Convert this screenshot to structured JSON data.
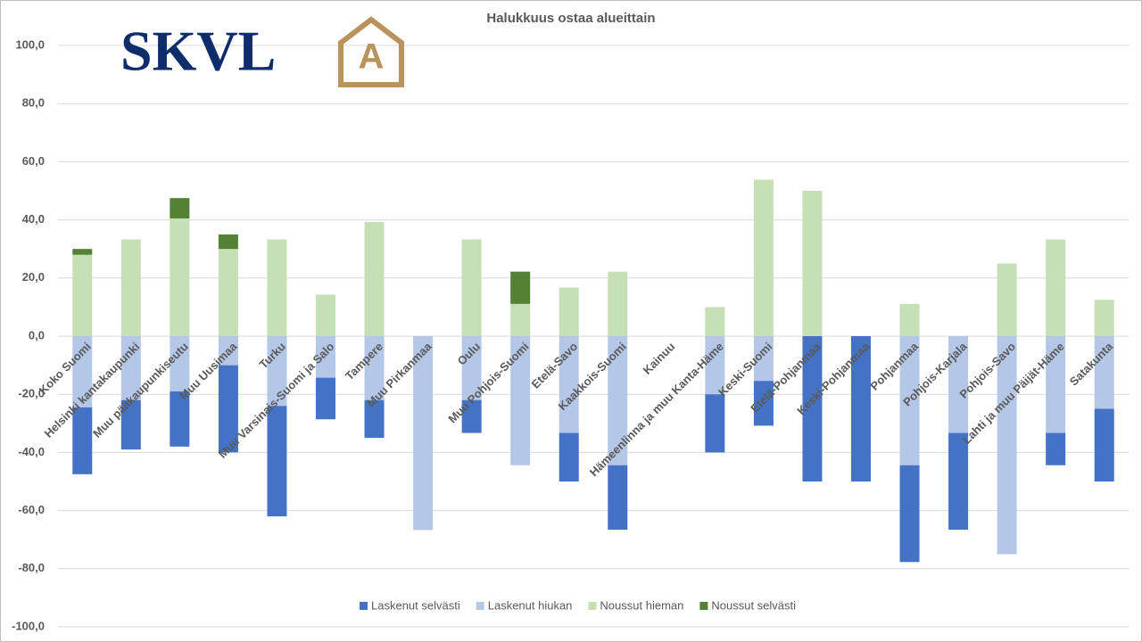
{
  "logo": {
    "text": "SKVL",
    "badge": "A"
  },
  "chart_data": {
    "type": "stacked_bar",
    "title": "Halukkuus ostaa alueittain",
    "categories": [
      "Koko Suomi",
      "Helsinki kantakaupunki",
      "Muu pääkaupunkiseutu",
      "Muu Uusimaa",
      "Turku",
      "Muu Varsinais-Suomi ja Salo",
      "Tampere",
      "Muu Pirkanmaa",
      "Oulu",
      "Muu Pohjois-Suomi",
      "Etelä-Savo",
      "Kaakkois-Suomi",
      "Kainuu",
      "Hämeenlinna ja muu Kanta-Häme",
      "Keski-Suomi",
      "Etelä-Pohjanmaa",
      "Keski-Pohjanmaa",
      "Pohjanmaa",
      "Pohjois-Karjala",
      "Pohjois-Savo",
      "Lahti ja muu Päijät-Häme",
      "Satakunta"
    ],
    "series": [
      {
        "name": "Laskenut selvästi",
        "color": "#4472c4",
        "values": [
          -23,
          -17,
          -19,
          -30,
          -38,
          -14.3,
          -13,
          0,
          -11.3,
          0,
          -16.7,
          -22.2,
          0,
          -20,
          -15.4,
          -50,
          -50,
          -33.3,
          -33.3,
          0,
          -11.1,
          -25
        ]
      },
      {
        "name": "Laskenut hiukan",
        "color": "#b4c7e7",
        "values": [
          -24.5,
          -22,
          -19,
          -10,
          -24,
          -14.3,
          -22,
          -66.7,
          -22,
          -44.4,
          -33.3,
          -44.4,
          0,
          -20,
          -15.4,
          0,
          0,
          -44.4,
          -33.3,
          -75,
          -33.3,
          -25
        ]
      },
      {
        "name": "Noussut hieman",
        "color": "#c5e0b4",
        "values": [
          28,
          33.3,
          40.5,
          30,
          33.3,
          14.3,
          39.3,
          0,
          33.3,
          11.1,
          16.7,
          22.2,
          0,
          10,
          53.8,
          50,
          0,
          11.1,
          0,
          25,
          33.3,
          12.5
        ]
      },
      {
        "name": "Noussut selvästi",
        "color": "#548235",
        "values": [
          2,
          0,
          7,
          5,
          0,
          0,
          0,
          0,
          0,
          11.1,
          0,
          0,
          0,
          0,
          0,
          0,
          0,
          0,
          0,
          0,
          0,
          0
        ]
      }
    ],
    "ylim": [
      -100,
      100
    ],
    "yticks": [
      {
        "value": -100,
        "label": "-100,0"
      },
      {
        "value": -80,
        "label": "-80,0"
      },
      {
        "value": -60,
        "label": "-60,0"
      },
      {
        "value": -40,
        "label": "-40,0"
      },
      {
        "value": -20,
        "label": "-20,0"
      },
      {
        "value": 0,
        "label": "0,0"
      },
      {
        "value": 20,
        "label": "20,0"
      },
      {
        "value": 40,
        "label": "40,0"
      },
      {
        "value": 60,
        "label": "60,0"
      },
      {
        "value": 80,
        "label": "80,0"
      },
      {
        "value": 100,
        "label": "100,0"
      }
    ],
    "grid": true,
    "legend": "bottom"
  }
}
